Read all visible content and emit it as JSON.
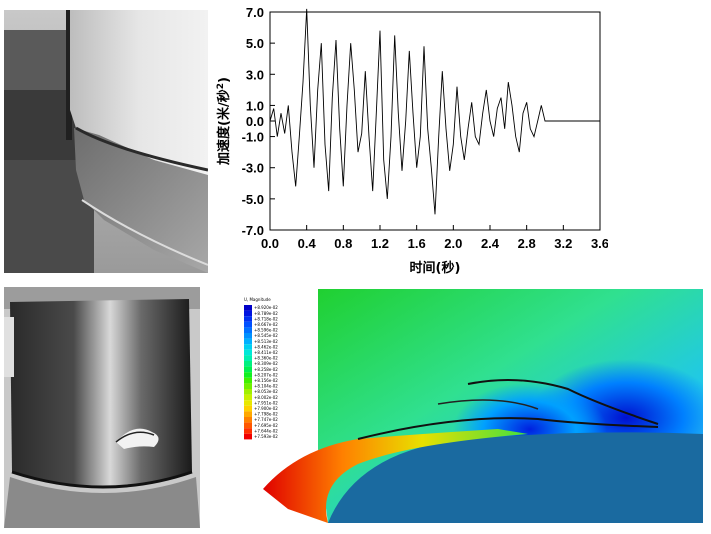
{
  "chart_data": {
    "type": "line",
    "xlabel": "时间(秒)",
    "ylabel": "加速度(米/秒²)",
    "ylabel_main": "加速度(米/秒",
    "ylabel_sup": "2",
    "ylabel_close": ")",
    "xlim": [
      0.0,
      3.6
    ],
    "ylim": [
      -7.0,
      7.0
    ],
    "x_ticks": [
      "0.0",
      "0.4",
      "0.8",
      "1.2",
      "1.6",
      "2.0",
      "2.4",
      "2.8",
      "3.2",
      "3.6"
    ],
    "y_ticks": [
      "7.0",
      "5.0",
      "3.0",
      "1.0",
      "0.0",
      "-1.0",
      "-3.0",
      "-5.0",
      "-7.0"
    ],
    "grid": false,
    "series": [
      {
        "x": [
          0.0,
          0.04,
          0.08,
          0.12,
          0.16,
          0.2,
          0.24,
          0.28,
          0.32,
          0.36,
          0.4,
          0.44,
          0.48,
          0.52,
          0.56,
          0.6,
          0.64,
          0.68,
          0.72,
          0.76,
          0.8,
          0.84,
          0.88,
          0.92,
          0.96,
          1.0,
          1.04,
          1.08,
          1.12,
          1.16,
          1.2,
          1.24,
          1.28,
          1.32,
          1.36,
          1.4,
          1.44,
          1.48,
          1.52,
          1.56,
          1.6,
          1.64,
          1.68,
          1.72,
          1.76,
          1.8,
          1.84,
          1.88,
          1.92,
          1.96,
          2.0,
          2.04,
          2.08,
          2.12,
          2.16,
          2.2,
          2.24,
          2.28,
          2.32,
          2.36,
          2.4,
          2.44,
          2.48,
          2.52,
          2.56,
          2.6,
          2.64,
          2.68,
          2.72,
          2.76,
          2.8,
          2.84,
          2.88,
          2.92,
          2.96,
          3.0,
          3.04,
          3.1,
          3.2,
          3.4,
          3.6
        ],
        "y": [
          0.0,
          0.8,
          -1.0,
          0.5,
          -0.8,
          1.0,
          -2.0,
          -4.2,
          -1.0,
          2.5,
          7.2,
          1.0,
          -3.0,
          2.0,
          5.0,
          -1.5,
          -4.5,
          1.5,
          5.2,
          -0.5,
          -4.2,
          1.0,
          5.0,
          2.0,
          -2.0,
          -0.8,
          3.2,
          -1.0,
          -4.5,
          0.5,
          5.8,
          -2.5,
          -5.0,
          -1.0,
          5.5,
          0.5,
          -3.2,
          0.0,
          4.5,
          0.5,
          -3.0,
          -1.0,
          4.8,
          -0.5,
          -3.0,
          -6.0,
          -1.0,
          3.2,
          -0.5,
          -3.2,
          -1.5,
          2.2,
          -1.0,
          -2.5,
          -0.5,
          1.2,
          -1.0,
          -1.5,
          0.5,
          2.0,
          0.0,
          -1.0,
          0.8,
          1.5,
          -0.5,
          2.5,
          1.0,
          -1.0,
          -2.0,
          0.5,
          1.2,
          -0.5,
          -1.0,
          0.0,
          1.0,
          0.0,
          0.0,
          0.0,
          0.0,
          0.0,
          0.0
        ]
      }
    ]
  },
  "fea_legend": {
    "title": "U, Magnitude",
    "values": [
      "+8.920e-02",
      "+8.789e-02",
      "+8.718e-02",
      "+8.667e-02",
      "+8.596e-02",
      "+8.545e-02",
      "+8.513e-02",
      "+8.462e-02",
      "+8.411e-02",
      "+8.360e-02",
      "+8.309e-02",
      "+8.258e-02",
      "+8.207e-02",
      "+8.156e-02",
      "+8.104e-02",
      "+8.053e-02",
      "+8.002e-02",
      "+7.951e-02",
      "+7.900e-02",
      "+7.798e-02",
      "+7.747e-02",
      "+7.695e-02",
      "+7.644e-02",
      "+7.593e-02"
    ],
    "colors": [
      "#0000c8",
      "#0014e0",
      "#0030f0",
      "#0050ff",
      "#0070ff",
      "#0090ff",
      "#00b0ff",
      "#00d0f0",
      "#00e8d8",
      "#00f0b0",
      "#00f080",
      "#00f050",
      "#10f020",
      "#40f000",
      "#70f000",
      "#a0f000",
      "#c8f000",
      "#e8e800",
      "#ffd000",
      "#ffa800",
      "#ff8000",
      "#ff5800",
      "#ff3000",
      "#f00000"
    ]
  }
}
